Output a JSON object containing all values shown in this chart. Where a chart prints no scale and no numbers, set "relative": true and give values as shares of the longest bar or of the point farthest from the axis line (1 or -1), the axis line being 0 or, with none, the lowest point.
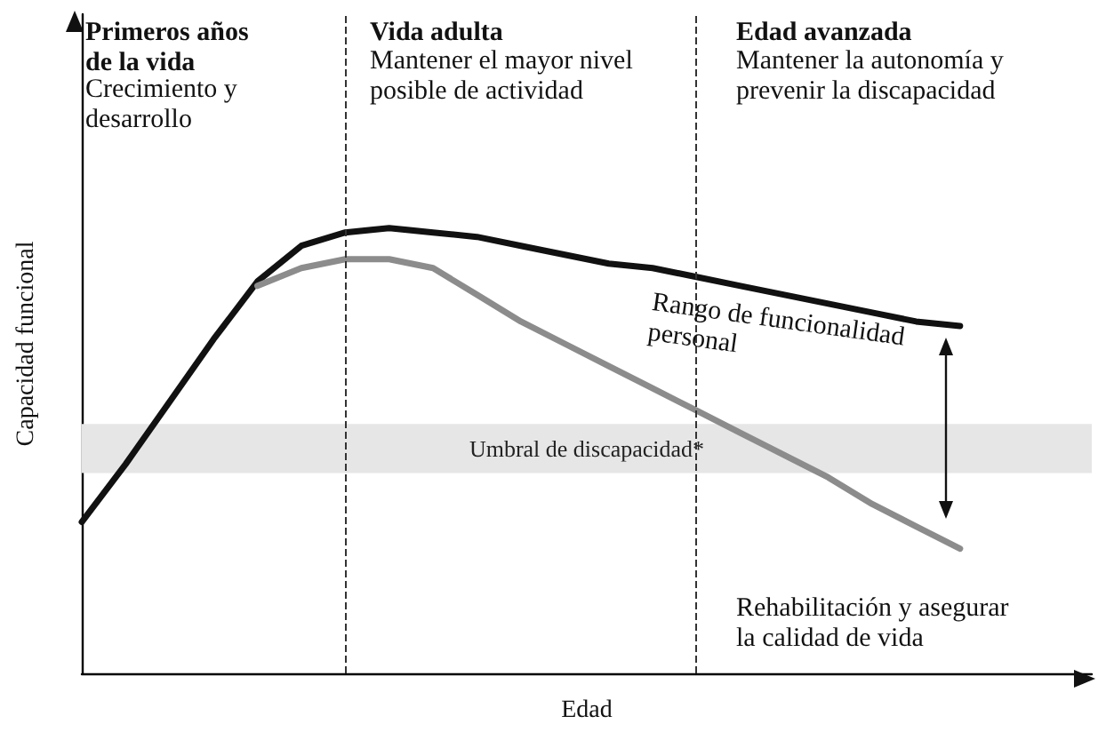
{
  "chart_data": {
    "type": "line",
    "relative": true,
    "xlabel": "Edad",
    "ylabel": "Capacidad funcional",
    "categories": [
      null,
      null,
      null,
      null,
      null,
      null,
      null,
      null,
      null,
      null,
      null,
      null,
      null,
      null,
      null,
      null,
      null,
      null,
      null,
      null,
      null,
      null,
      null,
      null
    ],
    "series": [
      {
        "color": "#111111",
        "values": [
          0.34,
          0.47,
          0.61,
          0.75,
          0.88,
          0.96,
          0.99,
          1,
          0.99,
          0.98,
          0.96,
          0.94,
          0.92,
          0.91,
          0.89,
          0.87,
          0.85,
          0.83,
          0.81,
          0.79,
          0.78,
          null,
          null,
          null
        ]
      },
      {
        "color": "#8c8c8c",
        "values": [
          null,
          null,
          null,
          null,
          0.87,
          0.91,
          0.93,
          0.93,
          0.91,
          0.85,
          0.79,
          0.74,
          0.69,
          0.64,
          0.59,
          0.54,
          0.49,
          0.44,
          0.38,
          0.33,
          0.28,
          null,
          null,
          null
        ]
      }
    ],
    "bands": [
      {
        "axis": "y",
        "from": 0.45,
        "to": 0.56,
        "label": "Umbral de discapacidad*",
        "color": "#e6e6e6"
      }
    ],
    "annotations": [
      "Primeros años\nde la vida",
      "Crecimiento y\ndesarrollo",
      "Vida adulta",
      "Mantener el mayor nivel\nposible de actividad",
      "Edad avanzada",
      "Mantener la autonomía y\nprevenir la discapacidad",
      "Rango de funcionalidad\npersonal",
      "Rehabilitación y asegurar\nla calidad de vida"
    ],
    "grid": false,
    "marker": "none",
    "line_style": "solid"
  }
}
